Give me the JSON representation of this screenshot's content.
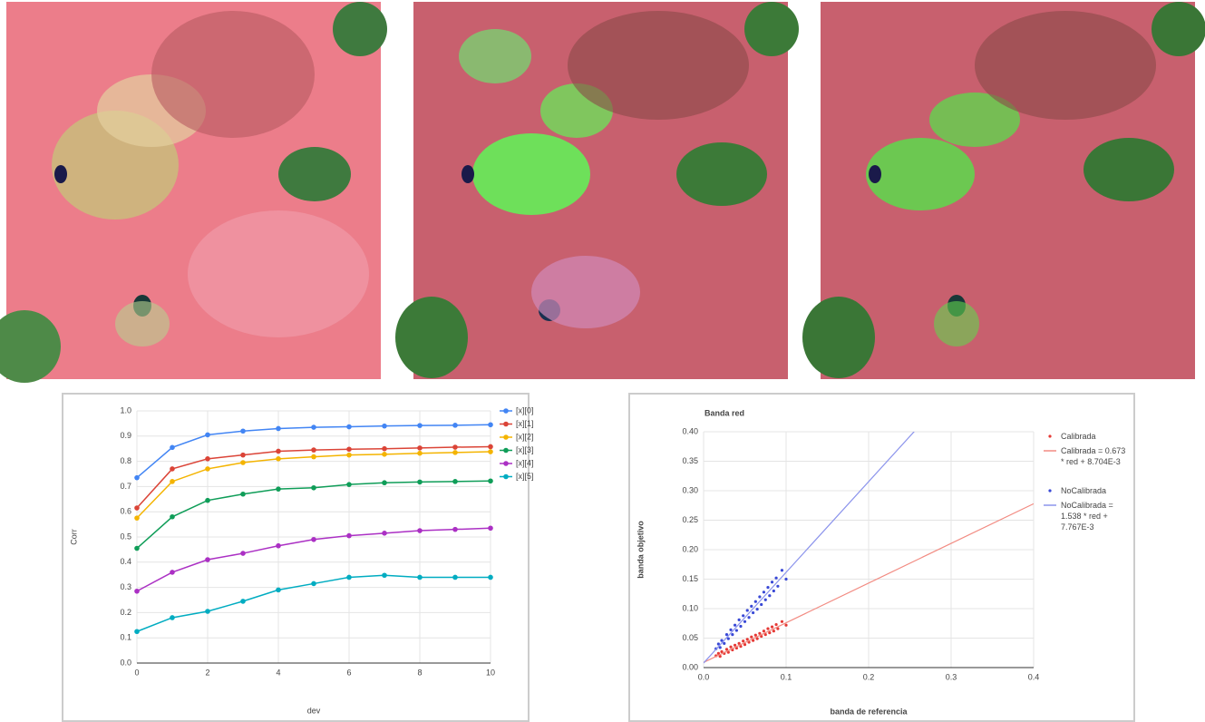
{
  "chart_data": [
    {
      "type": "line",
      "x_label": "dev",
      "y_label": "Corr",
      "x": [
        0,
        1,
        2,
        3,
        4,
        5,
        6,
        7,
        8,
        9,
        10
      ],
      "xlim": [
        0,
        10
      ],
      "xticks": [
        0,
        2,
        4,
        6,
        8,
        10
      ],
      "ylim": [
        0,
        1
      ],
      "yticks": [
        {
          "value": 0,
          "label": "0.0"
        },
        0.1,
        0.2,
        0.3,
        0.4,
        0.5,
        0.6,
        0.7,
        0.8,
        0.9,
        {
          "value": 1,
          "label": "1.0"
        }
      ],
      "grid": true,
      "legend": "right",
      "series": [
        {
          "name": "[x][0]",
          "color": "#4285f4",
          "values": [
            0.735,
            0.855,
            0.905,
            0.92,
            0.93,
            0.935,
            0.937,
            0.94,
            0.942,
            0.943,
            0.945
          ]
        },
        {
          "name": "[x][1]",
          "color": "#db4437",
          "values": [
            0.615,
            0.77,
            0.81,
            0.825,
            0.84,
            0.845,
            0.848,
            0.85,
            0.853,
            0.856,
            0.858
          ]
        },
        {
          "name": "[x][2]",
          "color": "#f4b400",
          "values": [
            0.575,
            0.72,
            0.77,
            0.795,
            0.81,
            0.818,
            0.825,
            0.828,
            0.832,
            0.835,
            0.838
          ]
        },
        {
          "name": "[x][3]",
          "color": "#0f9d58",
          "values": [
            0.455,
            0.58,
            0.645,
            0.67,
            0.69,
            0.695,
            0.708,
            0.715,
            0.718,
            0.72,
            0.722
          ]
        },
        {
          "name": "[x][4]",
          "color": "#ab30c4",
          "values": [
            0.285,
            0.36,
            0.41,
            0.435,
            0.465,
            0.49,
            0.505,
            0.515,
            0.525,
            0.53,
            0.535
          ]
        },
        {
          "name": "[x][5]",
          "color": "#00acc1",
          "values": [
            0.125,
            0.18,
            0.205,
            0.245,
            0.29,
            0.315,
            0.34,
            0.348,
            0.34,
            0.34,
            0.34
          ]
        }
      ]
    },
    {
      "type": "scatter",
      "title": "Banda red",
      "x_label": "banda de referencia",
      "y_label": "banda objetivo",
      "xlim": [
        0,
        0.4
      ],
      "xticks": [
        {
          "value": 0,
          "label": "0.0"
        },
        0.1,
        0.2,
        0.3,
        0.4
      ],
      "ylim": [
        0,
        0.4
      ],
      "yticks": [
        {
          "value": 0,
          "label": "0.00"
        },
        0.05,
        {
          "value": 0.1,
          "label": "0.10"
        },
        0.15,
        {
          "value": 0.2,
          "label": "0.20"
        },
        0.25,
        {
          "value": 0.3,
          "label": "0.30"
        },
        0.35,
        {
          "value": 0.4,
          "label": "0.40"
        }
      ],
      "grid": true,
      "legend": "right",
      "series": [
        {
          "name": "Calibrada",
          "color": "#e53935",
          "x": [
            0.015,
            0.018,
            0.02,
            0.022,
            0.025,
            0.028,
            0.03,
            0.033,
            0.035,
            0.038,
            0.04,
            0.043,
            0.045,
            0.048,
            0.05,
            0.053,
            0.055,
            0.058,
            0.06,
            0.063,
            0.065,
            0.068,
            0.07,
            0.073,
            0.075,
            0.078,
            0.08,
            0.083,
            0.085,
            0.088,
            0.09,
            0.095,
            0.1
          ],
          "values": [
            0.02,
            0.024,
            0.019,
            0.027,
            0.024,
            0.031,
            0.026,
            0.035,
            0.03,
            0.038,
            0.033,
            0.041,
            0.036,
            0.045,
            0.039,
            0.048,
            0.043,
            0.052,
            0.046,
            0.055,
            0.049,
            0.058,
            0.053,
            0.062,
            0.056,
            0.066,
            0.059,
            0.069,
            0.062,
            0.073,
            0.066,
            0.078,
            0.072
          ],
          "trendline": {
            "label": "Calibrada = 0.673 * red + 8.704E-3",
            "slope": 0.673,
            "intercept": 0.008704,
            "color": "#f28b82"
          }
        },
        {
          "name": "NoCalibrada",
          "color": "#3949d6",
          "x": [
            0.015,
            0.018,
            0.02,
            0.022,
            0.025,
            0.028,
            0.03,
            0.033,
            0.035,
            0.038,
            0.04,
            0.043,
            0.045,
            0.048,
            0.05,
            0.053,
            0.055,
            0.058,
            0.06,
            0.063,
            0.065,
            0.068,
            0.07,
            0.073,
            0.075,
            0.078,
            0.08,
            0.083,
            0.085,
            0.088,
            0.09,
            0.095,
            0.1
          ],
          "values": [
            0.032,
            0.04,
            0.034,
            0.046,
            0.041,
            0.056,
            0.049,
            0.064,
            0.056,
            0.072,
            0.063,
            0.081,
            0.07,
            0.088,
            0.078,
            0.097,
            0.085,
            0.104,
            0.093,
            0.112,
            0.099,
            0.12,
            0.107,
            0.128,
            0.115,
            0.136,
            0.122,
            0.145,
            0.13,
            0.152,
            0.138,
            0.165,
            0.15
          ],
          "trendline": {
            "label": "NoCalibrada = 1.538 * red + 7.767E-3",
            "slope": 1.538,
            "intercept": 0.007767,
            "color": "#8c94ec"
          }
        }
      ]
    }
  ]
}
